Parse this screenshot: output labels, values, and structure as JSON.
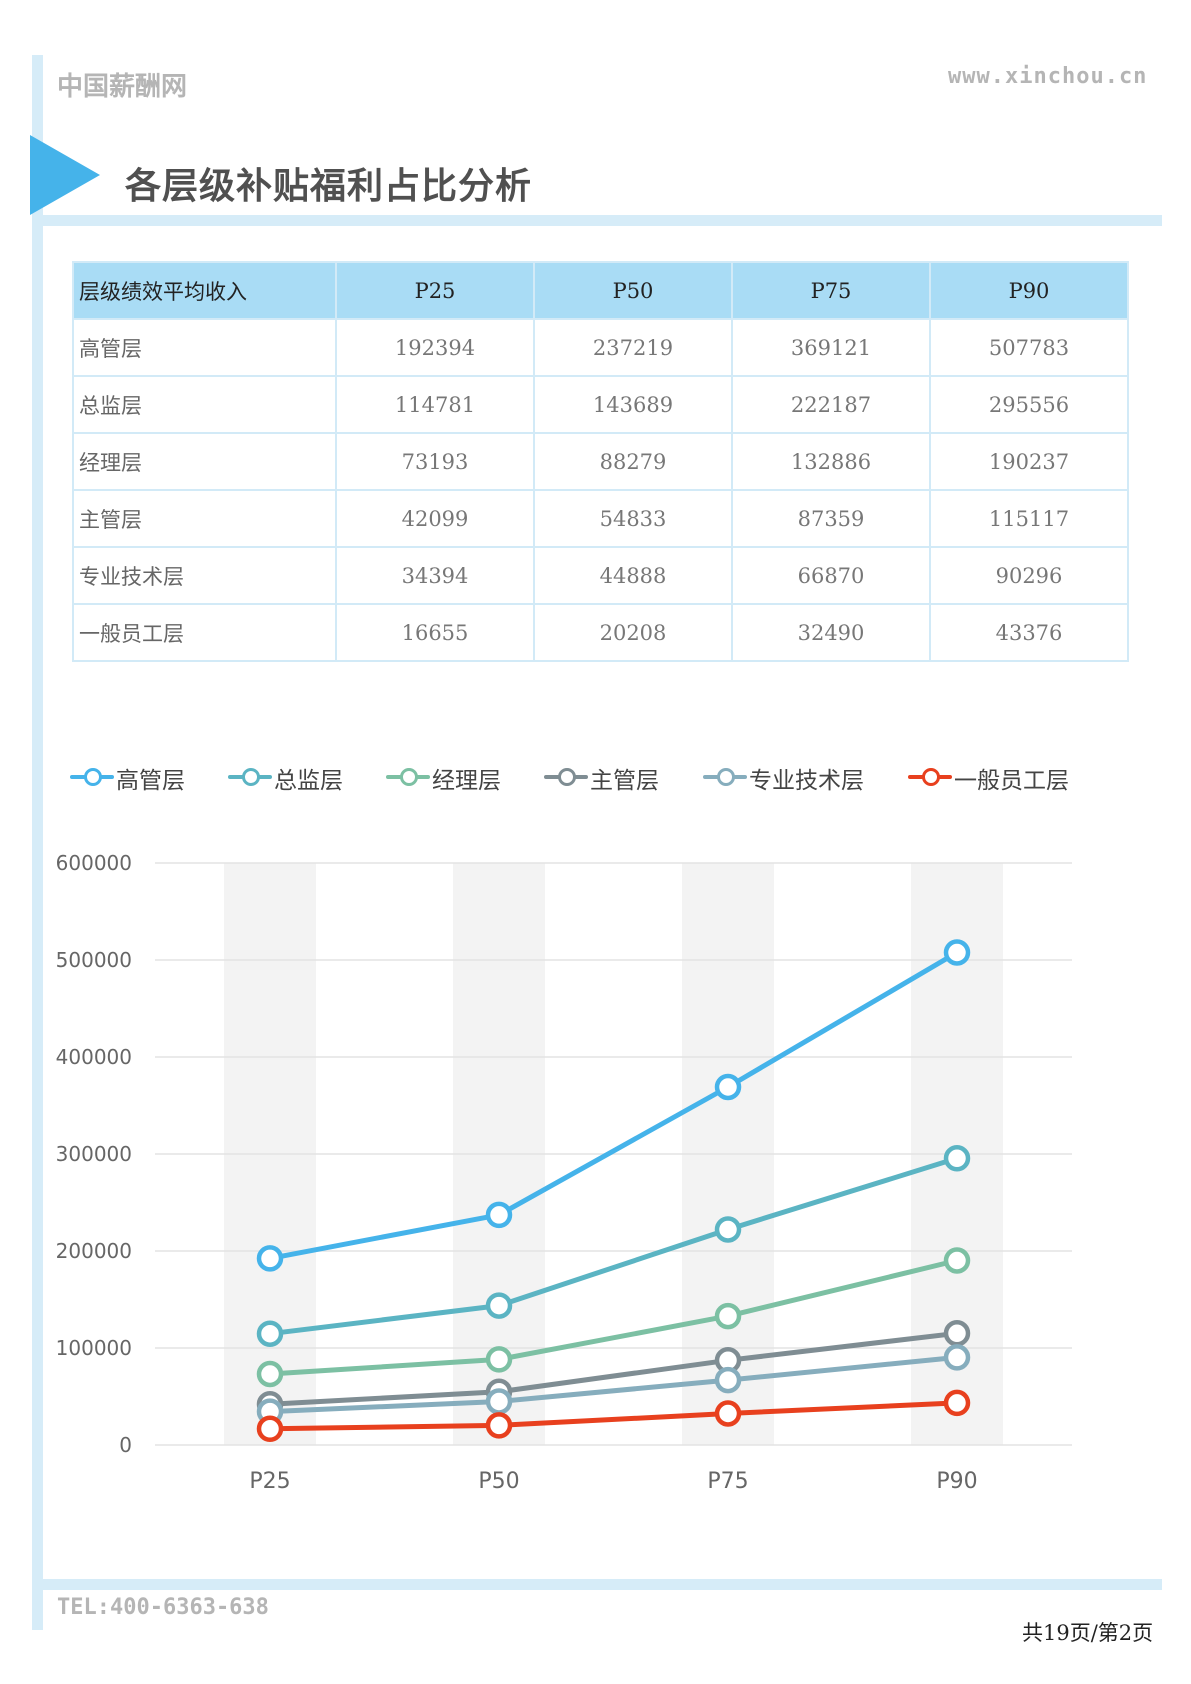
{
  "header": {
    "site_name": "中国薪酬网",
    "url": "www.xinchou.cn"
  },
  "section": {
    "title": "各层级补贴福利占比分析"
  },
  "table": {
    "columns": [
      "层级绩效平均收入",
      "P25",
      "P50",
      "P75",
      "P90"
    ],
    "rows": [
      {
        "label": "高管层",
        "values": [
          "192394",
          "237219",
          "369121",
          "507783"
        ]
      },
      {
        "label": "总监层",
        "values": [
          "114781",
          "143689",
          "222187",
          "295556"
        ]
      },
      {
        "label": "经理层",
        "values": [
          "73193",
          "88279",
          "132886",
          "190237"
        ]
      },
      {
        "label": "主管层",
        "values": [
          "42099",
          "54833",
          "87359",
          "115117"
        ]
      },
      {
        "label": "专业技术层",
        "values": [
          "34394",
          "44888",
          "66870",
          "90296"
        ]
      },
      {
        "label": "一般员工层",
        "values": [
          "16655",
          "20208",
          "32490",
          "43376"
        ]
      }
    ]
  },
  "chart_data": {
    "type": "line",
    "title": "",
    "xlabel": "",
    "ylabel": "",
    "categories": [
      "P25",
      "P50",
      "P75",
      "P90"
    ],
    "ylim": [
      0,
      600000
    ],
    "yticks": [
      "0",
      "100000",
      "200000",
      "300000",
      "400000",
      "500000",
      "600000"
    ],
    "legend_position": "top",
    "grid": true,
    "series": [
      {
        "name": "高管层",
        "color": "#45b3ea",
        "values": [
          192394,
          237219,
          369121,
          507783
        ]
      },
      {
        "name": "总监层",
        "color": "#5bb4c3",
        "values": [
          114781,
          143689,
          222187,
          295556
        ]
      },
      {
        "name": "经理层",
        "color": "#7cc0a3",
        "values": [
          73193,
          88279,
          132886,
          190237
        ]
      },
      {
        "name": "主管层",
        "color": "#7f8d93",
        "values": [
          42099,
          54833,
          87359,
          115117
        ]
      },
      {
        "name": "专业技术层",
        "color": "#86adbd",
        "values": [
          34394,
          44888,
          66870,
          90296
        ]
      },
      {
        "name": "一般员工层",
        "color": "#e8401e",
        "values": [
          16655,
          20208,
          32490,
          43376
        ]
      }
    ]
  },
  "footer": {
    "tel": "TEL:400-6363-638",
    "page_info": "共19页/第2页"
  }
}
